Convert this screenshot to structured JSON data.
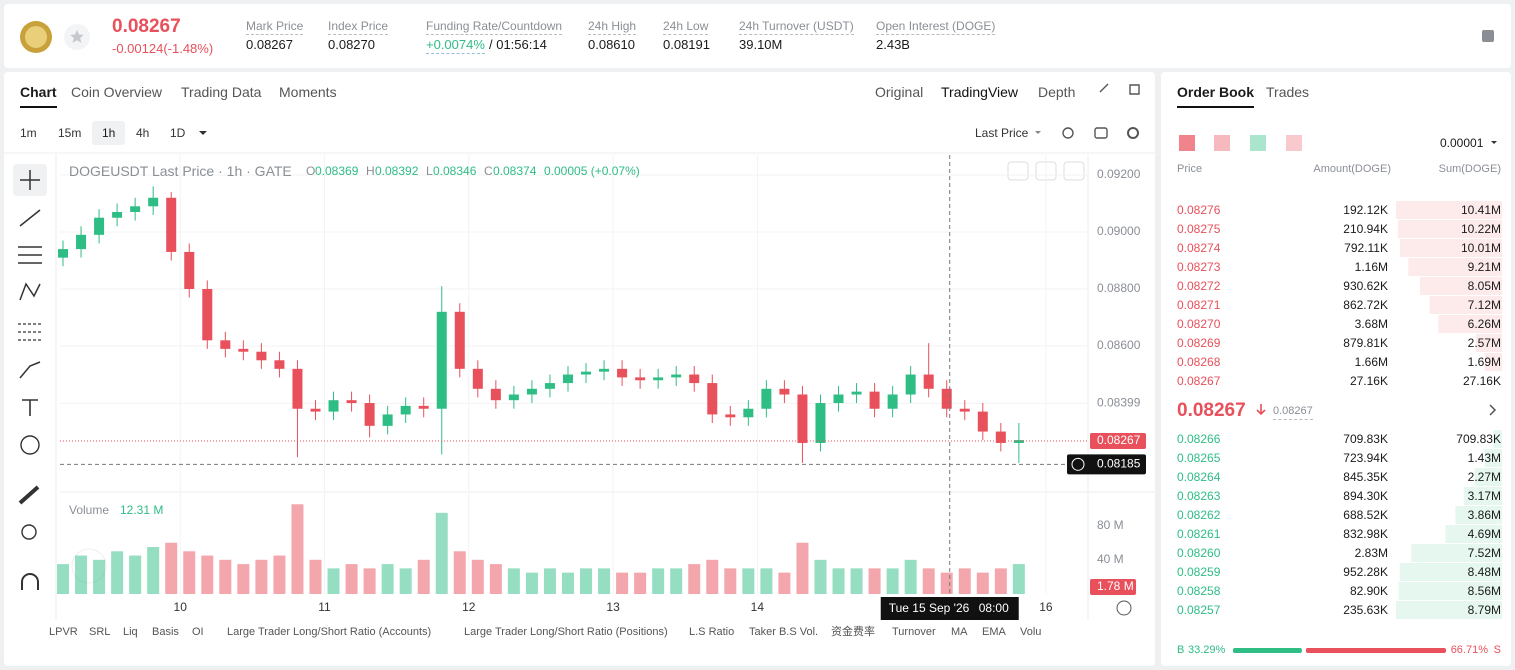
{
  "header": {
    "symbol_price": "0.08267",
    "change": "-0.00124(-1.48%)",
    "stats": [
      {
        "label": "Mark Price",
        "value": "0.08267"
      },
      {
        "label": "Index Price",
        "value": "0.08270"
      },
      {
        "label": "Funding Rate/Countdown",
        "value": "+0.0074%",
        "value2": "/ 01:56:14"
      },
      {
        "label": "24h High",
        "value": "0.08610"
      },
      {
        "label": "24h Low",
        "value": "0.08191"
      },
      {
        "label": "24h Turnover (USDT)",
        "value": "39.10M"
      },
      {
        "label": "Open Interest (DOGE)",
        "value": "2.43B"
      }
    ]
  },
  "chart_tabs": [
    "Chart",
    "Coin Overview",
    "Trading Data",
    "Moments"
  ],
  "view_tabs": [
    "Original",
    "TradingView",
    "Depth"
  ],
  "intervals": [
    "1m",
    "15m",
    "1h",
    "4h",
    "1D"
  ],
  "price_type": "Last Price",
  "chart_data": {
    "type": "candlestick",
    "up_color": "#2ebd85",
    "down_color": "#e8505b",
    "legend": {
      "title": "DOGEUSDT Last Price · 1h · GATE",
      "ohlc": [
        {
          "label": "O",
          "value": "0.08369"
        },
        {
          "label": "H",
          "value": "0.08392"
        },
        {
          "label": "L",
          "value": "0.08346"
        },
        {
          "label": "C",
          "value": "0.08374"
        }
      ],
      "change": "0.00005 (+0.07%)"
    },
    "x": [
      4.5,
      7.5,
      10.5,
      13.5,
      16.5,
      19.5,
      22.5,
      25.5,
      28.5,
      31.5,
      34.5,
      37.5,
      40.5,
      43.5,
      46.5,
      49.5,
      52.5,
      55.5,
      58.5,
      61.5,
      64.5,
      67.5,
      70.5,
      73.5,
      76.5,
      79.5,
      82.5,
      85.5,
      88.5,
      91.5,
      94.5,
      97.5,
      100.5,
      103.5,
      106.5,
      109.5,
      112.5,
      115.5,
      118.5,
      121.5,
      124.5,
      127.5,
      130.5,
      133.5,
      136.5,
      139.5,
      142.5,
      145.5,
      148.5,
      151.5,
      154.5,
      157.5,
      160.5,
      163.5
    ],
    "open": [
      0.0891,
      0.0894,
      0.0899,
      0.0905,
      0.0907,
      0.0909,
      0.0912,
      0.0893,
      0.088,
      0.0862,
      0.0859,
      0.0858,
      0.0855,
      0.0852,
      0.0838,
      0.0837,
      0.0841,
      0.084,
      0.0832,
      0.0836,
      0.0839,
      0.0838,
      0.0872,
      0.0852,
      0.0845,
      0.0841,
      0.0843,
      0.0845,
      0.0847,
      0.085,
      0.0851,
      0.0852,
      0.0849,
      0.0848,
      0.0849,
      0.085,
      0.0847,
      0.0836,
      0.0835,
      0.0838,
      0.0845,
      0.0843,
      0.0826,
      0.084,
      0.0843,
      0.0844,
      0.0838,
      0.0843,
      0.085,
      0.0845,
      0.0838,
      0.0837,
      0.083,
      0.0826
    ],
    "high": [
      0.0897,
      0.0902,
      0.0908,
      0.091,
      0.0912,
      0.0916,
      0.0914,
      0.0896,
      0.0883,
      0.0865,
      0.0862,
      0.0861,
      0.0858,
      0.0855,
      0.0841,
      0.0844,
      0.0844,
      0.0843,
      0.0839,
      0.0842,
      0.0842,
      0.0881,
      0.0875,
      0.0855,
      0.0848,
      0.0846,
      0.0848,
      0.085,
      0.0853,
      0.0854,
      0.0855,
      0.0855,
      0.0852,
      0.0852,
      0.0853,
      0.0853,
      0.085,
      0.0839,
      0.0841,
      0.0848,
      0.0848,
      0.0846,
      0.0843,
      0.0846,
      0.0847,
      0.0847,
      0.0846,
      0.0853,
      0.0861,
      0.0848,
      0.0841,
      0.084,
      0.0833,
      0.0833
    ],
    "low": [
      0.0888,
      0.0891,
      0.0896,
      0.0902,
      0.0904,
      0.0906,
      0.089,
      0.0877,
      0.0859,
      0.0856,
      0.0855,
      0.0852,
      0.0849,
      0.0821,
      0.0834,
      0.0834,
      0.0837,
      0.0828,
      0.0829,
      0.0833,
      0.0835,
      0.0822,
      0.0849,
      0.0842,
      0.0838,
      0.0838,
      0.084,
      0.0842,
      0.0844,
      0.0847,
      0.0848,
      0.0846,
      0.0845,
      0.0845,
      0.0846,
      0.0844,
      0.0833,
      0.0832,
      0.0832,
      0.0835,
      0.084,
      0.0819,
      0.0823,
      0.0837,
      0.084,
      0.0835,
      0.0835,
      0.084,
      0.0842,
      0.0835,
      0.0834,
      0.0827,
      0.0823,
      0.0819
    ],
    "close": [
      0.0894,
      0.0899,
      0.0905,
      0.0907,
      0.0909,
      0.0912,
      0.0893,
      0.088,
      0.0862,
      0.0859,
      0.0858,
      0.0855,
      0.0852,
      0.0838,
      0.0837,
      0.0841,
      0.084,
      0.0832,
      0.0836,
      0.0839,
      0.0838,
      0.0872,
      0.0852,
      0.0845,
      0.0841,
      0.0843,
      0.0845,
      0.0847,
      0.085,
      0.0851,
      0.0852,
      0.0849,
      0.0848,
      0.0849,
      0.085,
      0.0847,
      0.0836,
      0.0835,
      0.0838,
      0.0845,
      0.0843,
      0.0826,
      0.084,
      0.0843,
      0.0844,
      0.0838,
      0.0843,
      0.085,
      0.0845,
      0.0838,
      0.0837,
      0.083,
      0.0826,
      0.0827
    ],
    "xlim": [
      4,
      175
    ],
    "xticks": [
      {
        "value": 24,
        "label": "10"
      },
      {
        "value": 48,
        "label": "11"
      },
      {
        "value": 72,
        "label": "12"
      },
      {
        "value": 96,
        "label": "13"
      },
      {
        "value": 120,
        "label": "14"
      },
      {
        "value": 168,
        "label": "16"
      }
    ],
    "ylim": [
      0.08095,
      0.0927
    ],
    "yticks": [
      {
        "value": 0.092,
        "label": "0.09200"
      },
      {
        "value": 0.09,
        "label": "0.09000"
      },
      {
        "value": 0.088,
        "label": "0.08800"
      },
      {
        "value": 0.086,
        "label": "0.08600"
      },
      0.08399
    ],
    "last_price": 0.08267,
    "crosshair": {
      "x": 152,
      "price": 0.08185,
      "date": "Tue 15 Sep '26",
      "time": "08:00"
    },
    "volume": {
      "label": "Volume",
      "current": "12.31 M",
      "values": [
        35,
        45,
        40,
        50,
        45,
        55,
        60,
        50,
        45,
        40,
        35,
        40,
        45,
        105,
        40,
        30,
        35,
        30,
        35,
        30,
        40,
        95,
        50,
        40,
        35,
        30,
        25,
        30,
        25,
        30,
        30,
        25,
        25,
        30,
        30,
        35,
        40,
        30,
        30,
        30,
        25,
        60,
        40,
        30,
        30,
        30,
        30,
        40,
        30,
        25,
        30,
        25,
        30,
        35
      ],
      "ylim": [
        0,
        110
      ],
      "yticks": [
        {
          "value": 80,
          "label": "80 M"
        },
        {
          "value": 40,
          "label": "40 M"
        }
      ],
      "last": {
        "value": 1.78,
        "label": "1.78 M"
      }
    }
  },
  "indicators": [
    "LPVR",
    "SRL",
    "Liq",
    "Basis",
    "OI",
    "Large Trader Long/Short Ratio (Accounts)",
    "Large Trader Long/Short Ratio (Positions)",
    "L.S Ratio",
    "Taker B.S Vol.",
    "资金费率",
    "Turnover",
    "MA",
    "EMA",
    "Volu"
  ],
  "order_book": {
    "tabs": [
      "Order Book",
      "Trades"
    ],
    "precision": "0.00001",
    "columns": [
      "Price",
      "Amount(DOGE)",
      "Sum(DOGE)"
    ],
    "asks": [
      {
        "price": "0.08276",
        "amount": "192.12K",
        "sum": "10.41M"
      },
      {
        "price": "0.08275",
        "amount": "210.94K",
        "sum": "10.22M"
      },
      {
        "price": "0.08274",
        "amount": "792.11K",
        "sum": "10.01M"
      },
      {
        "price": "0.08273",
        "amount": "1.16M",
        "sum": "9.21M"
      },
      {
        "price": "0.08272",
        "amount": "930.62K",
        "sum": "8.05M"
      },
      {
        "price": "0.08271",
        "amount": "862.72K",
        "sum": "7.12M"
      },
      {
        "price": "0.08270",
        "amount": "3.68M",
        "sum": "6.26M"
      },
      {
        "price": "0.08269",
        "amount": "879.81K",
        "sum": "2.57M"
      },
      {
        "price": "0.08268",
        "amount": "1.66M",
        "sum": "1.69M"
      },
      {
        "price": "0.08267",
        "amount": "27.16K",
        "sum": "27.16K"
      }
    ],
    "mid": {
      "price": "0.08267",
      "mark": "0.08267"
    },
    "bids": [
      {
        "price": "0.08266",
        "amount": "709.83K",
        "sum": "709.83K"
      },
      {
        "price": "0.08265",
        "amount": "723.94K",
        "sum": "1.43M"
      },
      {
        "price": "0.08264",
        "amount": "845.35K",
        "sum": "2.27M"
      },
      {
        "price": "0.08263",
        "amount": "894.30K",
        "sum": "3.17M"
      },
      {
        "price": "0.08262",
        "amount": "688.52K",
        "sum": "3.86M"
      },
      {
        "price": "0.08261",
        "amount": "832.98K",
        "sum": "4.69M"
      },
      {
        "price": "0.08260",
        "amount": "2.83M",
        "sum": "7.52M"
      },
      {
        "price": "0.08259",
        "amount": "952.28K",
        "sum": "8.48M"
      },
      {
        "price": "0.08258",
        "amount": "82.90K",
        "sum": "8.56M"
      },
      {
        "price": "0.08257",
        "amount": "235.63K",
        "sum": "8.79M"
      }
    ],
    "ratio": {
      "buy_label": "B",
      "buy": 33.29,
      "buy_text": "33.29%",
      "sell": 66.71,
      "sell_text": "66.71%",
      "sell_label": "S"
    }
  }
}
